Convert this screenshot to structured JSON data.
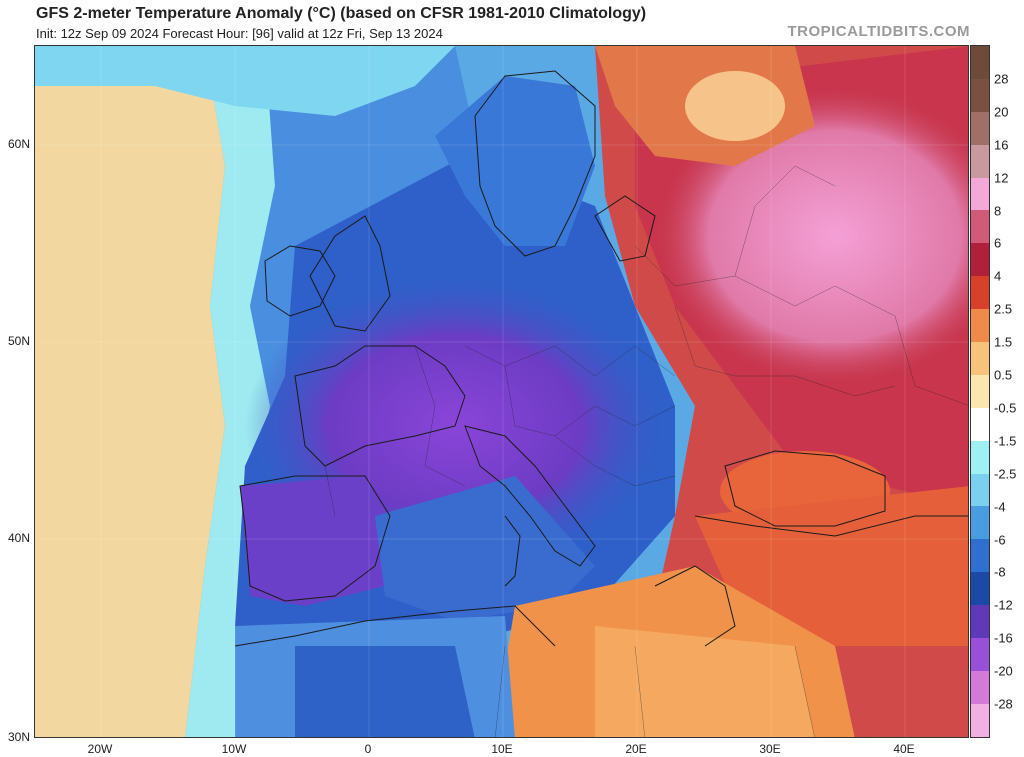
{
  "header": {
    "title": "GFS 2-meter Temperature Anomaly (°C) (based on CFSR 1981-2010 Climatology)",
    "subtitle": "Init: 12z Sep 09 2024   Forecast Hour: [96]   valid at 12z Fri, Sep 13 2024",
    "watermark": "TROPICALTIDBITS.COM"
  },
  "map": {
    "lat_labels": [
      "60N",
      "50N",
      "40N",
      "30N"
    ],
    "lon_labels": [
      "20W",
      "10W",
      "0",
      "10E",
      "20E",
      "30E",
      "40E"
    ]
  },
  "colorbar": {
    "labels": [
      "28",
      "20",
      "16",
      "12",
      "8",
      "6",
      "4",
      "2.5",
      "1.5",
      "0.5",
      "-0.5",
      "-1.5",
      "-2.5",
      "-4",
      "-6",
      "-8",
      "-12",
      "-16",
      "-20",
      "-28"
    ],
    "colors": [
      "#7a5040",
      "#a07068",
      "#c89aa0",
      "#f3a8d8",
      "#d05a78",
      "#b0203a",
      "#d8402c",
      "#f08a4a",
      "#f7c27a",
      "#fbe6b0",
      "#ffffff",
      "#9ff0f0",
      "#7ad0ee",
      "#4a9ce0",
      "#2e6fd0",
      "#1c48a8",
      "#5e3ab8",
      "#9850d8",
      "#d27ad8",
      "#f0b0e0"
    ]
  }
}
